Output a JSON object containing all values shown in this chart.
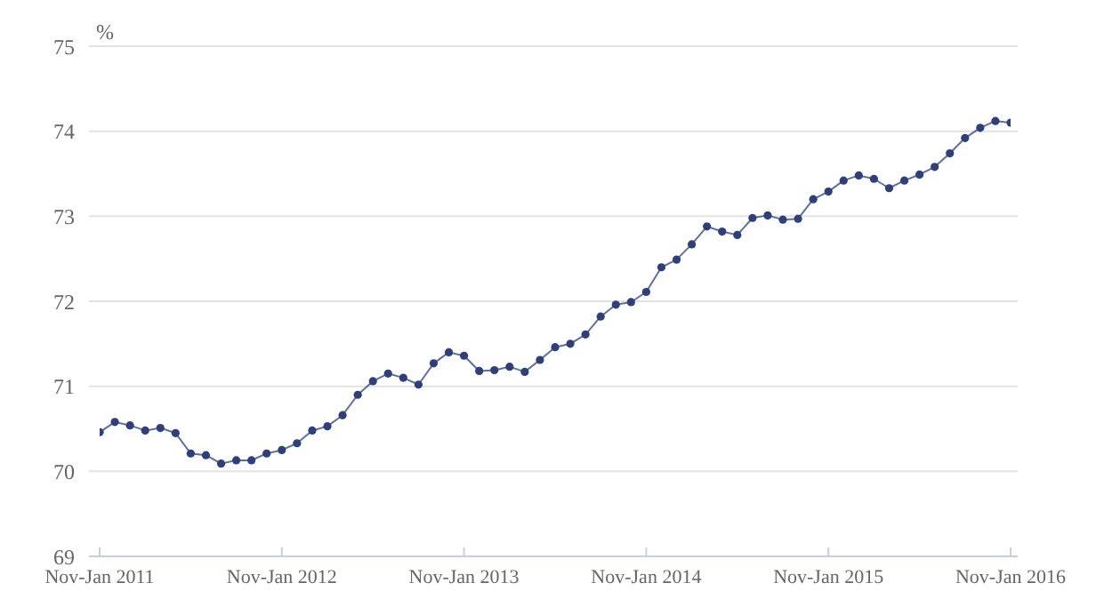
{
  "chart_data": {
    "type": "line",
    "ylabel": "%",
    "categories": [
      "Nov-Jan 2011",
      null,
      null,
      null,
      null,
      null,
      null,
      null,
      null,
      null,
      null,
      null,
      "Nov-Jan 2012",
      null,
      null,
      null,
      null,
      null,
      null,
      null,
      null,
      null,
      null,
      null,
      "Nov-Jan 2013",
      null,
      null,
      null,
      null,
      null,
      null,
      null,
      null,
      null,
      null,
      null,
      "Nov-Jan 2014",
      null,
      null,
      null,
      null,
      null,
      null,
      null,
      null,
      null,
      null,
      null,
      "Nov-Jan 2015",
      null,
      null,
      null,
      null,
      null,
      null,
      null,
      null,
      null,
      null,
      null,
      "Nov-Jan 2016"
    ],
    "series": [
      {
        "color": "#2e3f7a",
        "values": [
          70.46,
          70.58,
          70.54,
          70.48,
          70.51,
          70.45,
          70.21,
          70.19,
          70.09,
          70.13,
          70.13,
          70.21,
          70.25,
          70.33,
          70.48,
          70.53,
          70.66,
          70.9,
          71.06,
          71.15,
          71.1,
          71.02,
          71.27,
          71.4,
          71.36,
          71.18,
          71.19,
          71.23,
          71.17,
          71.31,
          71.46,
          71.5,
          71.61,
          71.82,
          71.96,
          71.99,
          72.11,
          72.4,
          72.49,
          72.67,
          72.88,
          72.82,
          72.78,
          72.98,
          73.01,
          72.96,
          72.97,
          73.2,
          73.29,
          73.42,
          73.48,
          73.44,
          73.33,
          73.42,
          73.49,
          73.58,
          73.74,
          73.92,
          74.04,
          74.12,
          74.1
        ]
      }
    ],
    "ylim": [
      69,
      75
    ],
    "yticks": [
      69,
      70,
      71,
      72,
      73,
      74,
      75
    ],
    "grid": "y",
    "marker": "circle",
    "line_style": "solid"
  }
}
